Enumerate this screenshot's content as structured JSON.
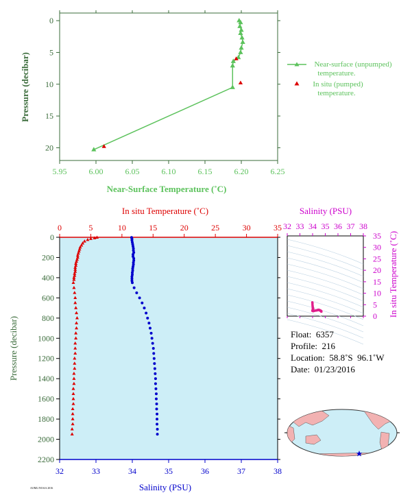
{
  "colors": {
    "green": "#5cc25c",
    "axis_green": "#3a6b3a",
    "red": "#dd0000",
    "blue": "#0000cc",
    "magenta": "#cc00cc",
    "panel_bg": "#cdeef7"
  },
  "chart_data": [
    {
      "type": "line",
      "xlabel": "Near-Surface Temperature (˚C)",
      "ylabel": "Pressure (decibar)",
      "xlim": [
        5.95,
        6.25
      ],
      "ylim": [
        22,
        -1.2
      ],
      "x_ticks": [
        "5.95",
        "6.00",
        "6.05",
        "6.10",
        "6.15",
        "6.20",
        "6.25"
      ],
      "y_ticks": [
        "0",
        "5",
        "10",
        "15",
        "20"
      ],
      "grid": false,
      "legend_position": "right",
      "series": [
        {
          "name": "Near-surface (unpumped) temperature.",
          "marker": "triangle-line",
          "points": [
            [
              6.197,
              0
            ],
            [
              6.199,
              0.3
            ],
            [
              6.198,
              0.9
            ],
            [
              6.2,
              1.5
            ],
            [
              6.199,
              2.0
            ],
            [
              6.201,
              2.7
            ],
            [
              6.202,
              3.4
            ],
            [
              6.2,
              4.3
            ],
            [
              6.199,
              5.0
            ],
            [
              6.196,
              5.8
            ],
            [
              6.189,
              6.4
            ],
            [
              6.188,
              7.1
            ],
            [
              6.188,
              10.5
            ],
            [
              5.997,
              20.3
            ]
          ]
        },
        {
          "name": "In situ (pumped) temperature.",
          "marker": "triangle",
          "points": [
            [
              6.193,
              6.0
            ],
            [
              6.199,
              9.8
            ],
            [
              6.011,
              19.8
            ]
          ]
        }
      ],
      "legend": {
        "line1a": "Near-surface (unpumped)",
        "line1b": "temperature.",
        "line2a": "In situ (pumped)",
        "line2b": "temperature."
      }
    },
    {
      "type": "line",
      "title_top": "In situ Temperature (˚C)",
      "xlabel": "Salinity (PSU)",
      "ylabel": "Pressure (decibar)",
      "temperature_xlim": [
        0,
        35
      ],
      "salinity_xlim": [
        32,
        38
      ],
      "ylim": [
        2200,
        0
      ],
      "temp_ticks": [
        "0",
        "5",
        "10",
        "15",
        "20",
        "25",
        "30",
        "35"
      ],
      "sal_ticks": [
        "32",
        "33",
        "34",
        "35",
        "36",
        "37",
        "38"
      ],
      "y_ticks": [
        "0",
        "200",
        "400",
        "600",
        "800",
        "1000",
        "1200",
        "1400",
        "1600",
        "1800",
        "2000",
        "2200"
      ],
      "series": [
        {
          "name": "In situ Temperature",
          "axis": "temperature",
          "points": [
            [
              6.0,
              2
            ],
            [
              5.6,
              8
            ],
            [
              5.0,
              15
            ],
            [
              4.5,
              25
            ],
            [
              4.0,
              40
            ],
            [
              3.7,
              60
            ],
            [
              3.5,
              80
            ],
            [
              3.3,
              100
            ],
            [
              3.2,
              120
            ],
            [
              3.1,
              140
            ],
            [
              3.0,
              160
            ],
            [
              2.9,
              180
            ],
            [
              2.9,
              200
            ],
            [
              2.8,
              220
            ],
            [
              2.7,
              240
            ],
            [
              2.6,
              260
            ],
            [
              2.6,
              280
            ],
            [
              2.5,
              300
            ],
            [
              2.5,
              320
            ],
            [
              2.5,
              340
            ],
            [
              2.4,
              360
            ],
            [
              2.4,
              380
            ],
            [
              2.3,
              400
            ],
            [
              2.3,
              420
            ],
            [
              2.2,
              450
            ],
            [
              2.3,
              500
            ],
            [
              2.4,
              550
            ],
            [
              2.5,
              600
            ],
            [
              2.5,
              650
            ],
            [
              2.6,
              700
            ],
            [
              2.7,
              750
            ],
            [
              2.8,
              800
            ],
            [
              2.7,
              850
            ],
            [
              2.7,
              900
            ],
            [
              2.6,
              950
            ],
            [
              2.6,
              1000
            ],
            [
              2.5,
              1050
            ],
            [
              2.5,
              1100
            ],
            [
              2.5,
              1150
            ],
            [
              2.4,
              1200
            ],
            [
              2.4,
              1250
            ],
            [
              2.4,
              1300
            ],
            [
              2.3,
              1350
            ],
            [
              2.3,
              1400
            ],
            [
              2.3,
              1450
            ],
            [
              2.2,
              1500
            ],
            [
              2.2,
              1550
            ],
            [
              2.2,
              1600
            ],
            [
              2.2,
              1650
            ],
            [
              2.1,
              1700
            ],
            [
              2.1,
              1750
            ],
            [
              2.1,
              1800
            ],
            [
              2.1,
              1850
            ],
            [
              2.0,
              1900
            ],
            [
              2.0,
              1950
            ]
          ]
        },
        {
          "name": "Salinity",
          "axis": "salinity",
          "points": [
            [
              33.98,
              2
            ],
            [
              33.99,
              15
            ],
            [
              33.99,
              30
            ],
            [
              34.0,
              50
            ],
            [
              34.01,
              70
            ],
            [
              34.02,
              90
            ],
            [
              34.03,
              110
            ],
            [
              34.03,
              130
            ],
            [
              34.04,
              150
            ],
            [
              34.02,
              170
            ],
            [
              34.02,
              190
            ],
            [
              34.04,
              210
            ],
            [
              34.04,
              230
            ],
            [
              34.03,
              250
            ],
            [
              34.03,
              270
            ],
            [
              34.02,
              290
            ],
            [
              34.01,
              310
            ],
            [
              34.01,
              330
            ],
            [
              34.0,
              350
            ],
            [
              34.0,
              370
            ],
            [
              33.99,
              390
            ],
            [
              33.99,
              410
            ],
            [
              33.99,
              430
            ],
            [
              34.0,
              450
            ],
            [
              34.05,
              500
            ],
            [
              34.12,
              550
            ],
            [
              34.2,
              600
            ],
            [
              34.27,
              650
            ],
            [
              34.33,
              700
            ],
            [
              34.38,
              750
            ],
            [
              34.42,
              800
            ],
            [
              34.46,
              850
            ],
            [
              34.49,
              900
            ],
            [
              34.52,
              950
            ],
            [
              34.54,
              1000
            ],
            [
              34.56,
              1050
            ],
            [
              34.58,
              1100
            ],
            [
              34.59,
              1150
            ],
            [
              34.6,
              1200
            ],
            [
              34.61,
              1250
            ],
            [
              34.62,
              1300
            ],
            [
              34.63,
              1350
            ],
            [
              34.64,
              1400
            ],
            [
              34.64,
              1450
            ],
            [
              34.65,
              1500
            ],
            [
              34.66,
              1550
            ],
            [
              34.66,
              1600
            ],
            [
              34.67,
              1650
            ],
            [
              34.67,
              1700
            ],
            [
              34.68,
              1750
            ],
            [
              34.68,
              1800
            ],
            [
              34.68,
              1850
            ],
            [
              34.69,
              1900
            ],
            [
              34.69,
              1950
            ]
          ]
        }
      ]
    },
    {
      "type": "scatter",
      "xlabel": "Salinity (PSU)",
      "ylabel": "In situ Temperature (˚C)",
      "xlim": [
        32,
        38
      ],
      "ylim": [
        0,
        35
      ],
      "x_ticks": [
        "32",
        "33",
        "34",
        "35",
        "36",
        "37",
        "38"
      ],
      "y_ticks": [
        "0",
        "5",
        "10",
        "15",
        "20",
        "25",
        "30",
        "35"
      ]
    }
  ],
  "info": {
    "float": "Float:  6357",
    "profile": "Profile:  216",
    "location": "Location:  58.8˚S  96.1˚W",
    "date": "Date:  01/23/2016"
  },
  "footnote": "AOML/NOAA 2016"
}
